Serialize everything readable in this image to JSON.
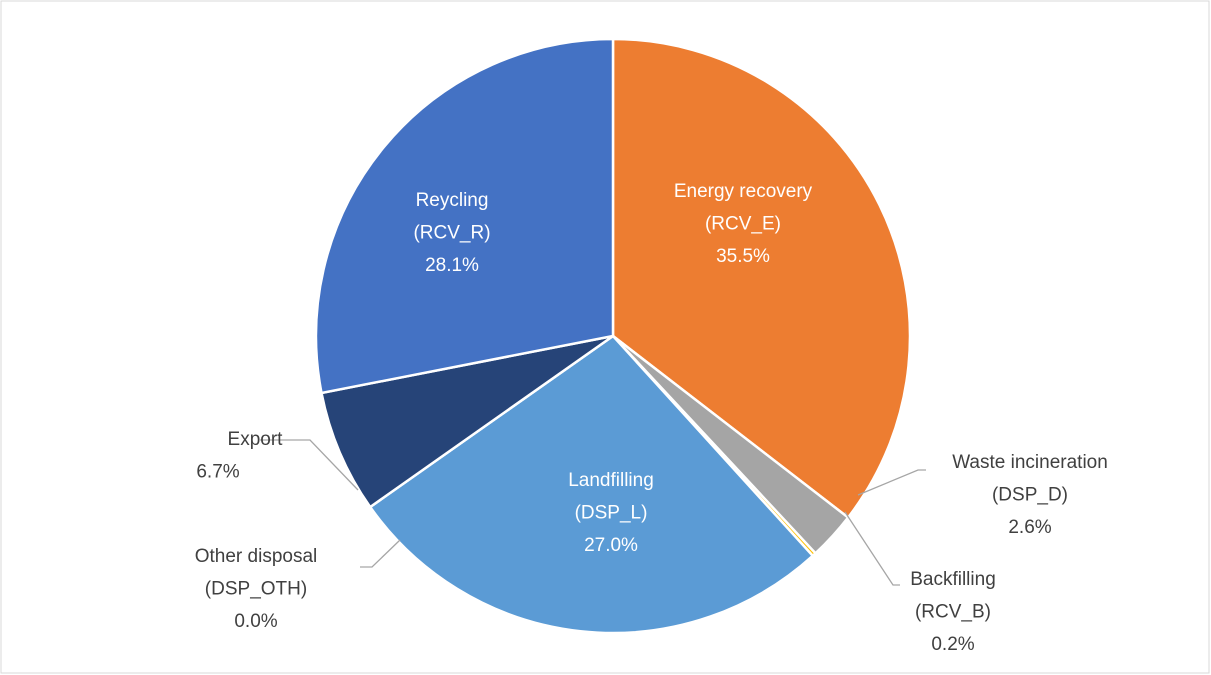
{
  "chart_data": {
    "type": "pie",
    "categories": [
      [
        "Energy recovery",
        "(RCV_E)"
      ],
      [
        "Waste incineration",
        "(DSP_D)"
      ],
      [
        "Backfilling",
        "(RCV_B)"
      ],
      [
        "Landfilling",
        "(DSP_L)"
      ],
      [
        "Other disposal",
        "(DSP_OTH)"
      ],
      [
        "Export"
      ],
      [
        "Reycling",
        "(RCV_R)"
      ]
    ],
    "values": [
      35.5,
      2.6,
      0.2,
      27.0,
      0.0,
      6.7,
      28.1
    ],
    "value_labels": [
      "35.5%",
      "2.6%",
      "0.2%",
      "27.0%",
      "0.0%",
      "6.7%",
      "28.1%"
    ],
    "colors": [
      "#ED7D31",
      "#A5A5A5",
      "#FFC000",
      "#5B9BD5",
      "#70AD47",
      "#264478",
      "#4472C4"
    ]
  }
}
